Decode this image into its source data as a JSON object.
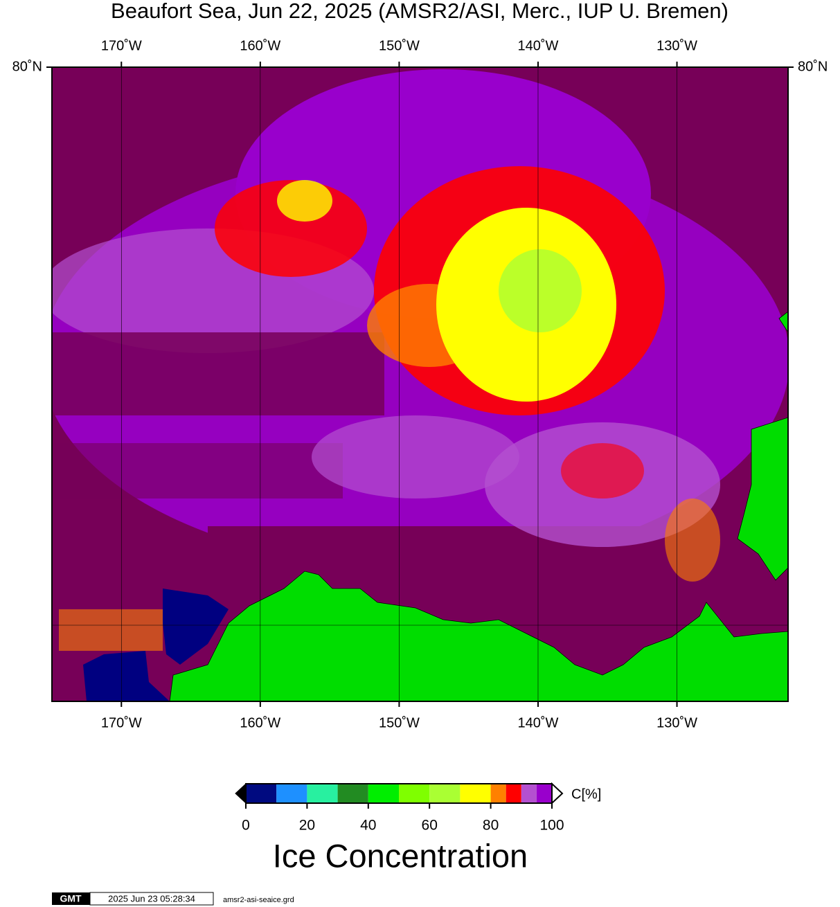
{
  "title": "Beaufort Sea, Jun 22, 2025 (AMSR2/ASI, Merc., IUP U. Bremen)",
  "map": {
    "xlim": [
      -175,
      -122
    ],
    "ylim": [
      69.6,
      80
    ],
    "lon_ticks": [
      {
        "value": -170,
        "label": "170˚W"
      },
      {
        "value": -160,
        "label": "160˚W"
      },
      {
        "value": -150,
        "label": "150˚W"
      },
      {
        "value": -140,
        "label": "140˚W"
      },
      {
        "value": -130,
        "label": "130˚W"
      }
    ],
    "lat_ticks": [
      {
        "value": 80,
        "label": "80˚N"
      }
    ]
  },
  "colorbar": {
    "bins": [
      0,
      10,
      20,
      30,
      40,
      50,
      60,
      70,
      80,
      85,
      90,
      95,
      100
    ],
    "colors": [
      "#000a80",
      "#1e90ff",
      "#28f0a0",
      "#228b22",
      "#00ee00",
      "#7fff00",
      "#aaff33",
      "#ffff00",
      "#ff8000",
      "#ff0000",
      "#b450d0",
      "#9900cc"
    ],
    "ticks": [
      0,
      20,
      40,
      60,
      80,
      100
    ],
    "unit": "C[%]",
    "label": "Ice Concentration"
  },
  "footer": {
    "logo": "GMT",
    "timestamp": "2025 Jun 23 05:28:34",
    "file": "amsr2-asi-seaice.grd"
  }
}
